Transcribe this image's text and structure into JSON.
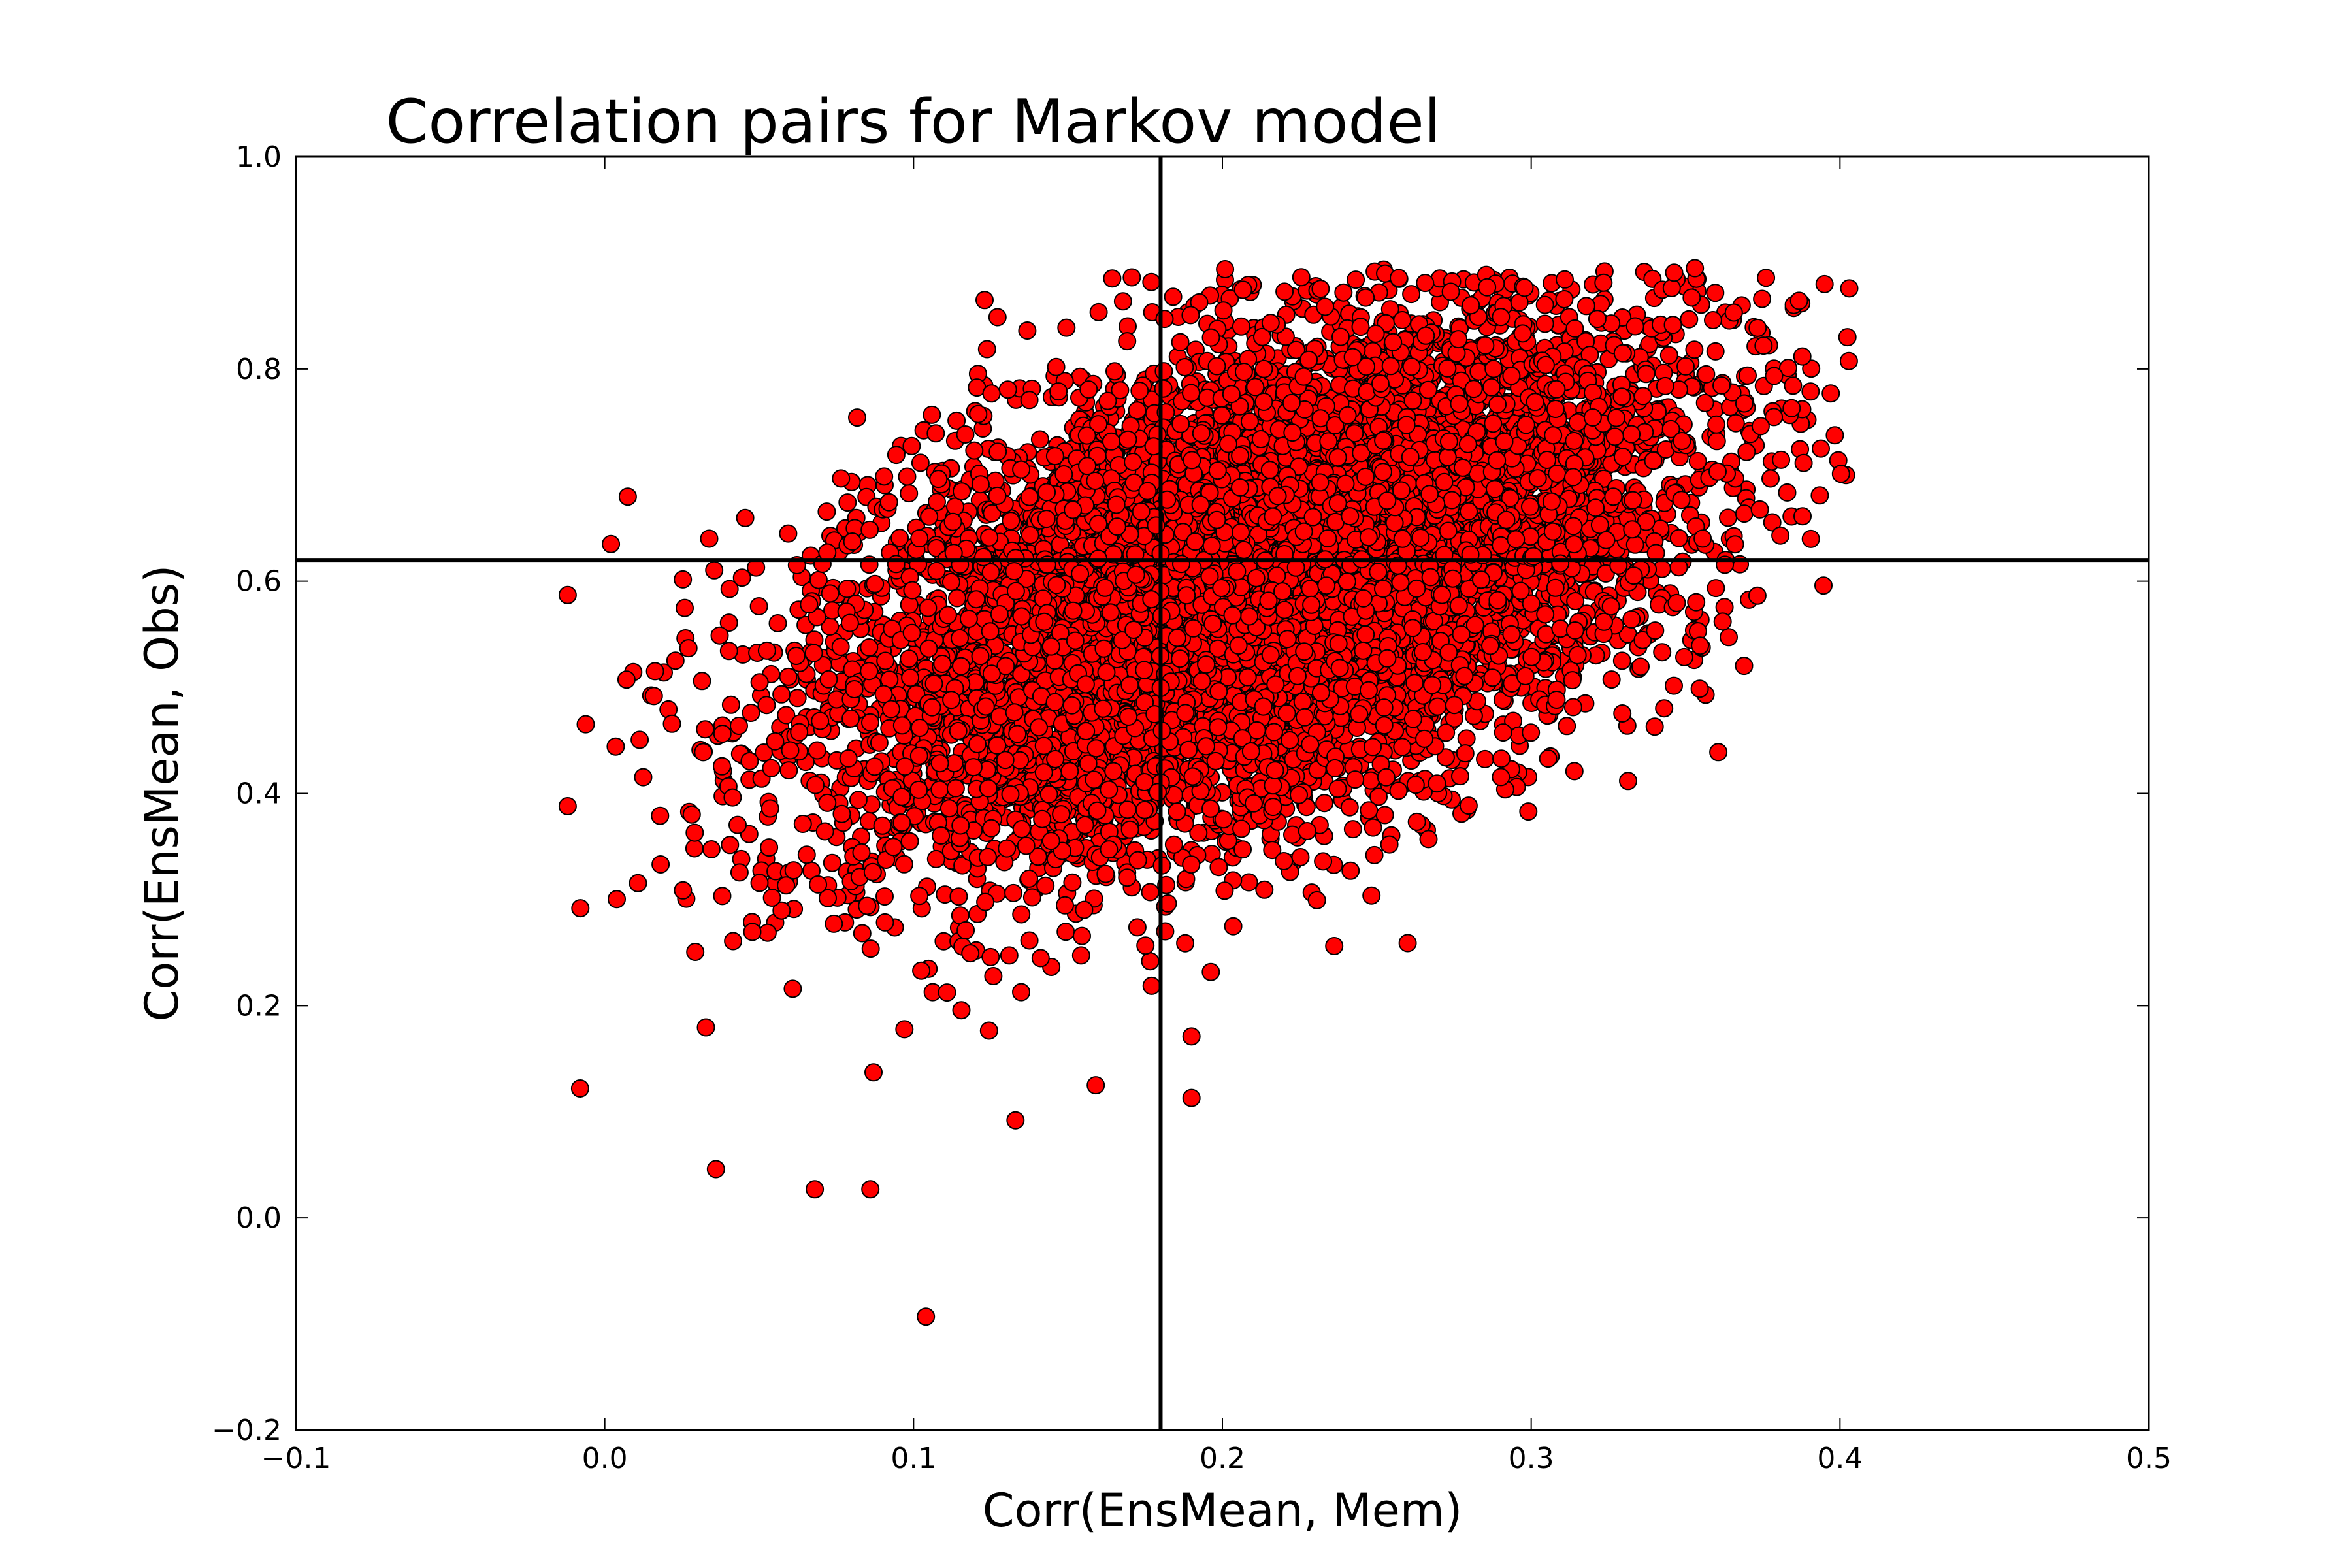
{
  "chart_data": {
    "type": "scatter",
    "title": "Correlation pairs for Markov model",
    "xlabel": "Corr(EnsMean, Mem)",
    "ylabel": "Corr(EnsMean, Obs)",
    "xlim": [
      -0.1,
      0.5
    ],
    "ylim": [
      -0.2,
      1.0
    ],
    "x_ticks": [
      -0.1,
      0.0,
      0.1,
      0.2,
      0.3,
      0.4,
      0.5
    ],
    "x_tick_labels": [
      "−0.1",
      "0.0",
      "0.1",
      "0.2",
      "0.3",
      "0.4",
      "0.5"
    ],
    "y_ticks": [
      -0.2,
      0.0,
      0.2,
      0.4,
      0.6,
      0.8,
      1.0
    ],
    "y_tick_labels": [
      "−0.2",
      "0.0",
      "0.2",
      "0.4",
      "0.6",
      "0.8",
      "1.0"
    ],
    "grid": false,
    "legend": "none",
    "marker_color": "#ff0000",
    "marker_edge_color": "#000000",
    "reference_lines": {
      "vertical_x": 0.18,
      "horizontal_y": 0.62
    },
    "cloud": {
      "approximate_point_count": 9000,
      "center": [
        0.21,
        0.6
      ],
      "x_std": 0.068,
      "y_std": 0.125,
      "correlation": 0.5,
      "x_range": [
        -0.012,
        0.403
      ],
      "y_range": [
        -0.093,
        0.895
      ]
    },
    "notable_points": [
      {
        "x": 0.104,
        "y": -0.093
      },
      {
        "x": 0.036,
        "y": 0.046
      },
      {
        "x": 0.068,
        "y": 0.027
      },
      {
        "x": 0.086,
        "y": 0.027
      },
      {
        "x": -0.008,
        "y": 0.122
      },
      {
        "x": -0.012,
        "y": 0.388
      },
      {
        "x": -0.012,
        "y": 0.587
      },
      {
        "x": 0.002,
        "y": 0.635
      },
      {
        "x": 0.19,
        "y": 0.113
      },
      {
        "x": 0.19,
        "y": 0.171
      },
      {
        "x": 0.26,
        "y": 0.259
      },
      {
        "x": 0.314,
        "y": 0.421
      },
      {
        "x": 0.34,
        "y": 0.463
      },
      {
        "x": 0.362,
        "y": 0.562
      },
      {
        "x": 0.353,
        "y": 0.895
      },
      {
        "x": 0.395,
        "y": 0.88
      },
      {
        "x": 0.403,
        "y": 0.876
      },
      {
        "x": 0.397,
        "y": 0.777
      },
      {
        "x": 0.177,
        "y": 0.882
      },
      {
        "x": 0.123,
        "y": 0.865
      },
      {
        "x": 0.159,
        "y": 0.125
      },
      {
        "x": 0.133,
        "y": 0.092
      }
    ]
  }
}
